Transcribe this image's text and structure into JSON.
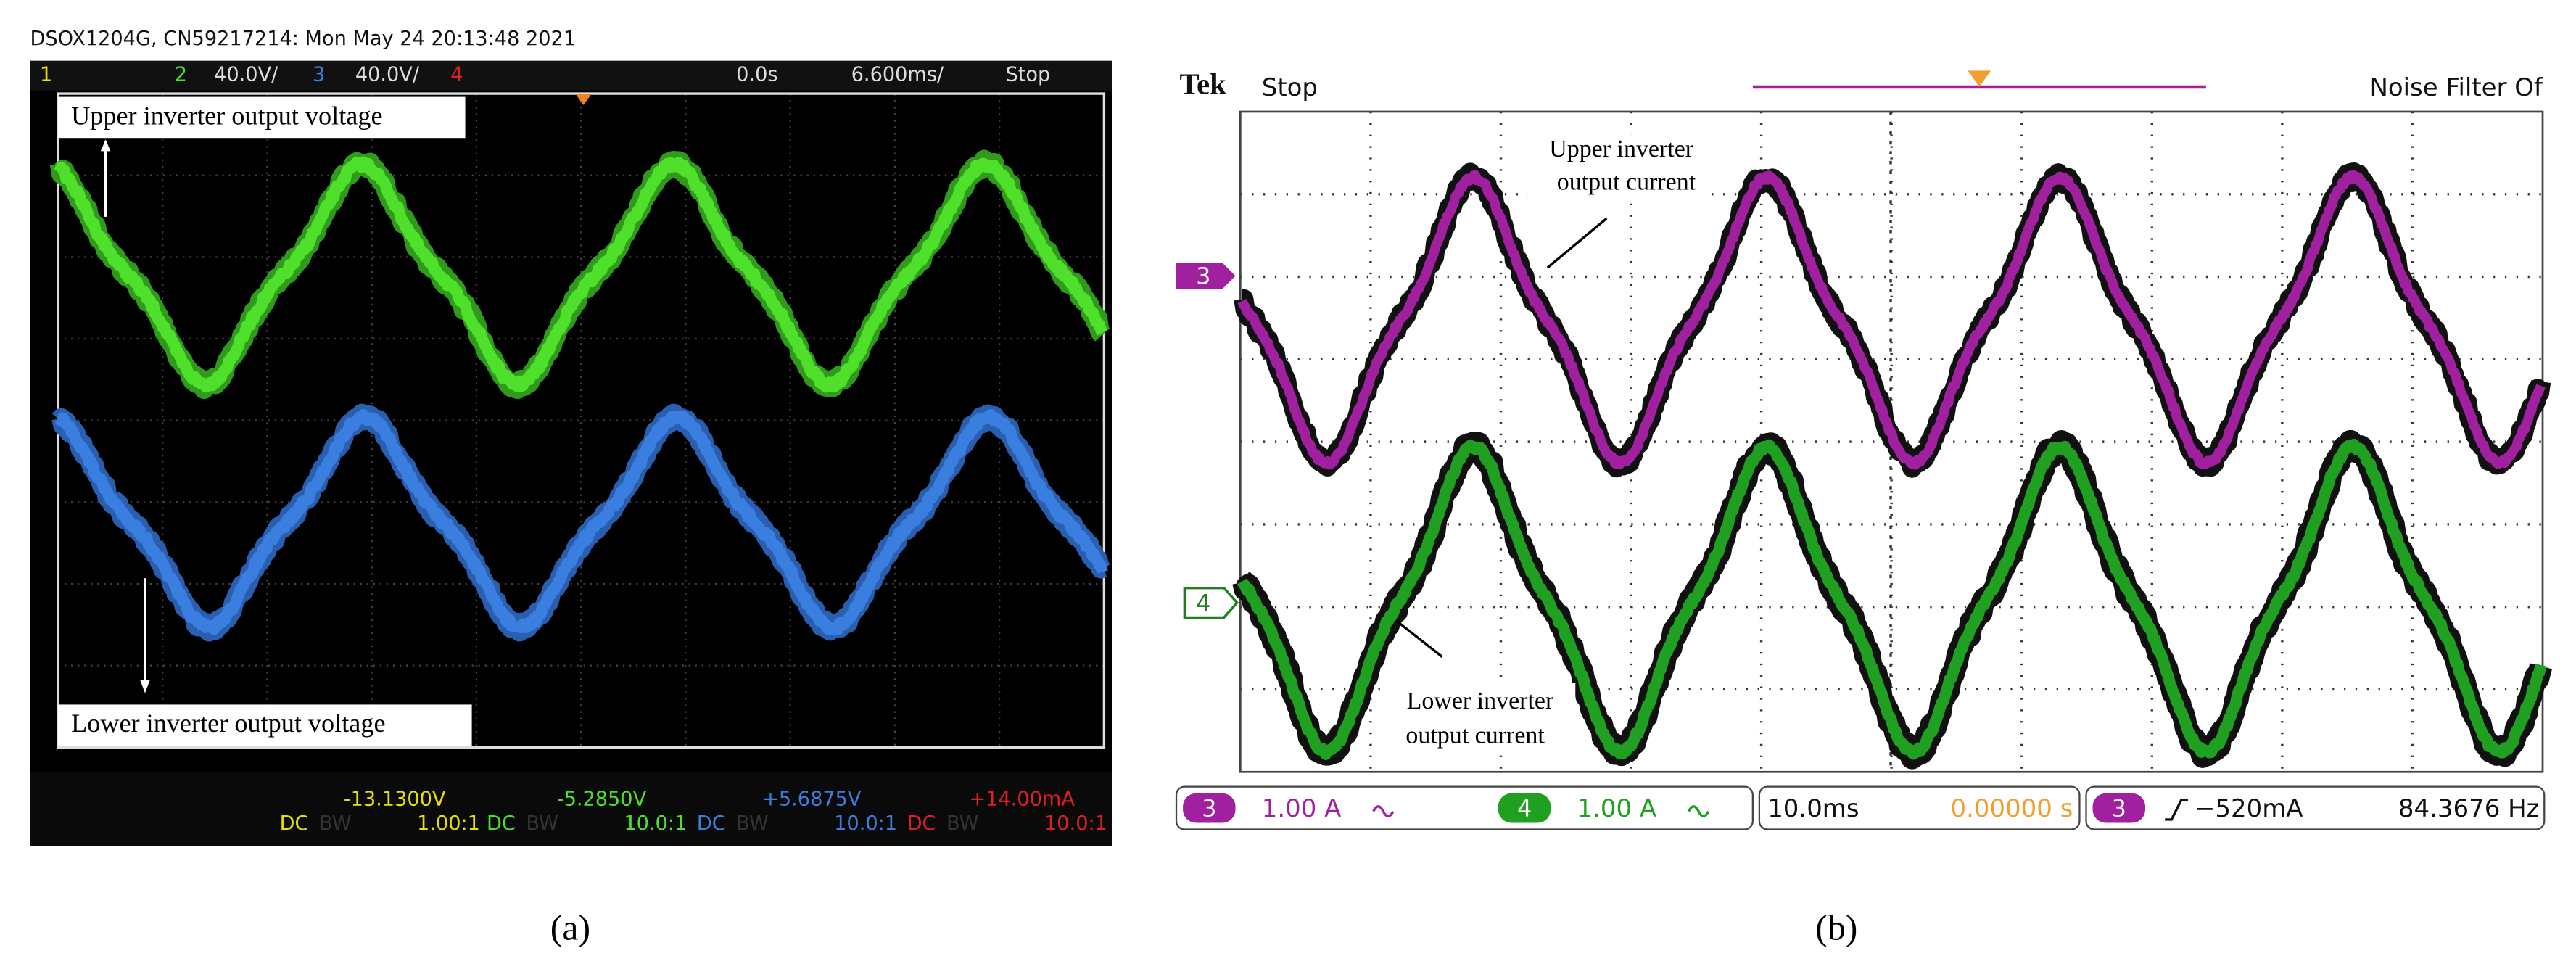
{
  "panel_a": {
    "header": "DSOX1204G, CN59217214: Mon May 24 20:13:48 2021",
    "top_bar": {
      "ch1": "1",
      "ch2": "2",
      "ch2_scale": "40.0V/",
      "ch3": "3",
      "ch3_scale": "40.0V/",
      "ch4": "4",
      "delay": "0.0s",
      "timebase": "6.600ms/",
      "state": "Stop"
    },
    "labels": {
      "upper": "Upper inverter output voltage",
      "lower": "Lower inverter output voltage"
    },
    "measurements": [
      "-13.1300V",
      "-5.2850V",
      "+5.6875V",
      "+14.00mA"
    ],
    "coupling": [
      [
        "DC",
        "BW",
        "1.00:1"
      ],
      [
        "DC",
        "BW",
        "10.0:1"
      ],
      [
        "DC",
        "BW",
        "10.0:1"
      ],
      [
        "DC",
        "BW",
        "10.0:1"
      ]
    ],
    "caption": "(a)"
  },
  "panel_b": {
    "brand": "Tek",
    "state": "Stop",
    "filter": "Noise Filter Of",
    "markers": [
      "3",
      "4"
    ],
    "labels": {
      "upper": [
        "Upper inverter",
        "output current"
      ],
      "lower": [
        "Lower inverter",
        "output current"
      ]
    },
    "bottom_bar": {
      "ch3": "3",
      "ch3_scale": "1.00 A",
      "ch4": "4",
      "ch4_scale": "1.00 A",
      "timebase": "10.0ms",
      "position": "0.00000 s",
      "trig_ch": "3",
      "trig_level": "−520mA",
      "frequency": "84.3676 Hz"
    },
    "caption": "(b)"
  }
}
